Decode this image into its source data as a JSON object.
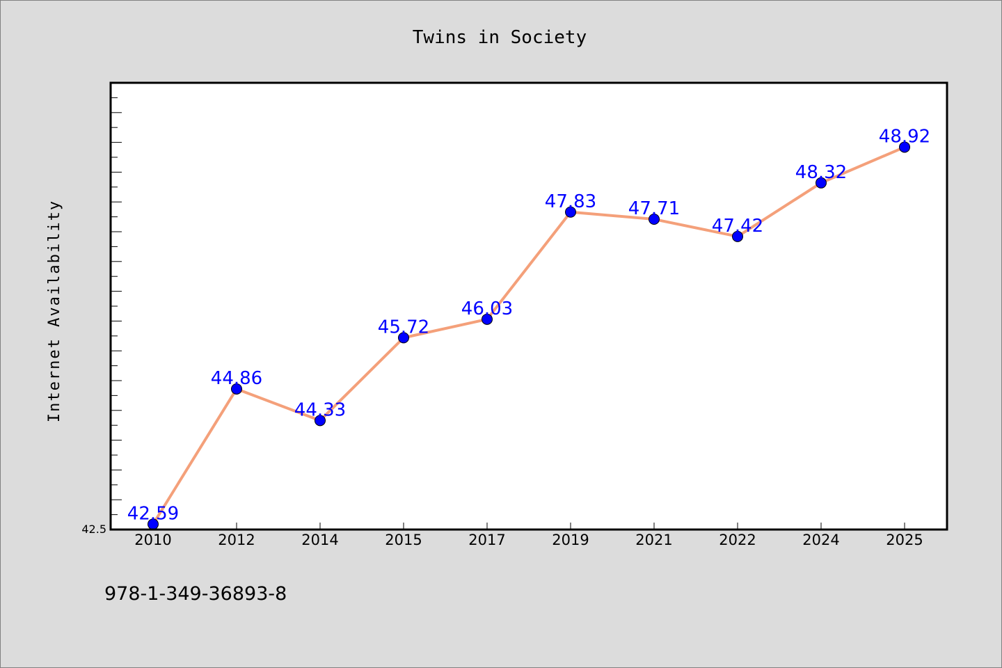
{
  "chart_data": {
    "type": "line",
    "title": "Twins in Society",
    "xlabel": "",
    "ylabel": "Internet Availability",
    "categories": [
      "2010",
      "2012",
      "2014",
      "2015",
      "2017",
      "2019",
      "2021",
      "2022",
      "2024",
      "2025"
    ],
    "series": [
      {
        "values": [
          42.59,
          44.86,
          44.33,
          45.72,
          46.03,
          47.83,
          47.71,
          47.42,
          48.32,
          48.92
        ]
      }
    ],
    "data_labels": [
      "42.59",
      "44.86",
      "44.33",
      "45.72",
      "46.03",
      "47.83",
      "47.71",
      "47.42",
      "48.32",
      "48.92"
    ],
    "ylim": [
      42.5,
      50.0
    ],
    "ytick_labels": [
      "42.5"
    ],
    "grid": false,
    "legend": "none"
  },
  "footnote": "978-1-349-36893-8",
  "colors": {
    "background": "#dcdcdc",
    "plot_background": "#ffffff",
    "line": "#f4a07a",
    "marker": "#0000ff",
    "data_label": "#0000ff"
  }
}
